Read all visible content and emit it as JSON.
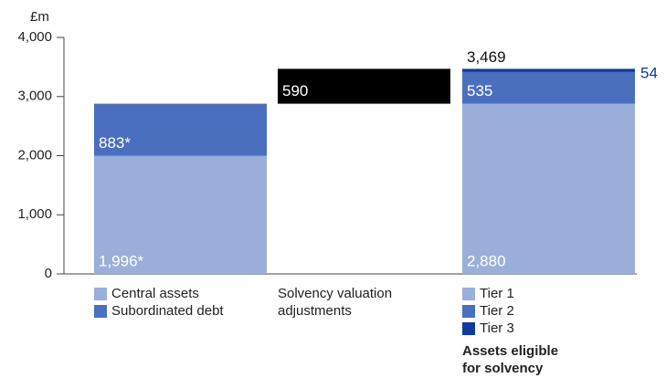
{
  "chart_data": {
    "type": "waterfall",
    "y_unit": "£m",
    "ylim": [
      0,
      4000
    ],
    "yticks": [
      0,
      {
        "value": 1000,
        "label": "1,000"
      },
      {
        "value": 2000,
        "label": "2,000"
      },
      {
        "value": 3000,
        "label": "3,000"
      },
      {
        "value": 4000,
        "label": "4,000"
      }
    ],
    "groups": [
      {
        "segments": [
          {
            "name": "Central assets",
            "color": "#9aafd9",
            "value": 1996,
            "value_label": "1,996*"
          },
          {
            "name": "Subordinated debt",
            "color": "#4a6fbf",
            "value": 883,
            "value_label": "883*"
          }
        ]
      },
      {
        "floating": true,
        "label_lines": [
          "Solvency valuation",
          "adjustments"
        ],
        "segments": [
          {
            "color": "#000000",
            "value": 590
          }
        ]
      },
      {
        "label_lines": [
          "Assets eligible",
          "for solvency"
        ],
        "total": 3469,
        "total_label": "3,469",
        "segments": [
          {
            "name": "Tier 1",
            "color": "#9aafd9",
            "value": 2880,
            "value_label": "2,880"
          },
          {
            "name": "Tier 2",
            "color": "#4a6fbf",
            "value": 535
          },
          {
            "name": "Tier 3",
            "color": "#0f3a9e",
            "value": 54
          }
        ]
      }
    ]
  }
}
